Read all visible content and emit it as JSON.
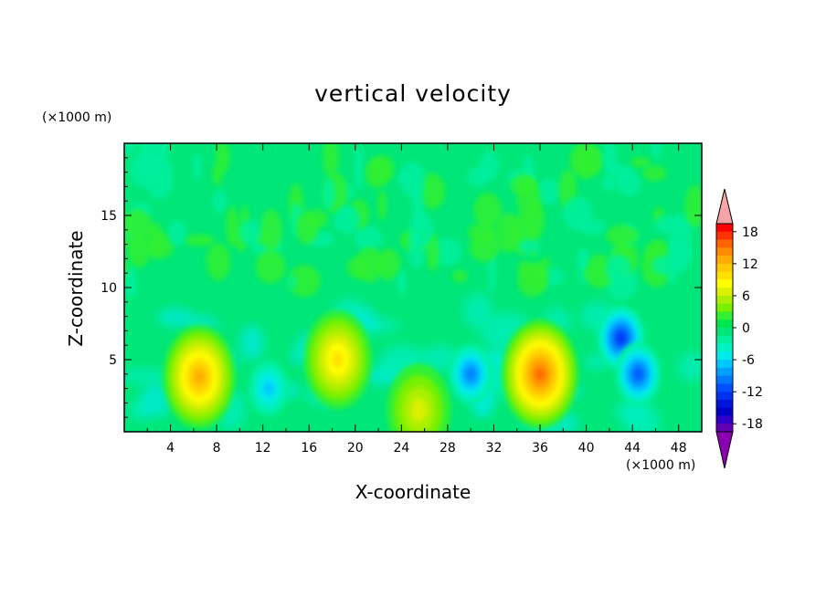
{
  "chart_data": {
    "type": "heatmap",
    "title": "vertical velocity",
    "xlabel": "X-coordinate",
    "ylabel": "Z-coordinate",
    "x_unit": "(×1000 m)",
    "y_unit": "(×1000 m)",
    "xlim": [
      0,
      50
    ],
    "ylim": [
      0,
      20
    ],
    "x_ticks": [
      4,
      8,
      12,
      16,
      20,
      24,
      28,
      32,
      36,
      40,
      44,
      48
    ],
    "y_ticks": [
      5,
      10,
      15
    ],
    "colorbar": {
      "levels": [
        -21,
        -19.5,
        -18,
        -16.5,
        -15,
        -13.5,
        -12,
        -10.5,
        -9,
        -7.5,
        -6,
        -4.5,
        -3,
        -1.5,
        0,
        1.5,
        3,
        4.5,
        6,
        7.5,
        9,
        10.5,
        12,
        13.5,
        15,
        16.5,
        18,
        19.5,
        21
      ],
      "tick_labels": [
        "18",
        "12",
        "6",
        "0",
        "-6",
        "-12",
        "-18"
      ],
      "tick_values": [
        18,
        12,
        6,
        0,
        -6,
        -12,
        -18
      ],
      "colors": [
        "#8c00b4",
        "#6400b4",
        "#3200c8",
        "#0000c8",
        "#0014dc",
        "#0032f0",
        "#0050ff",
        "#0078ff",
        "#00a0ff",
        "#00c8ff",
        "#00ebeb",
        "#00f0c8",
        "#00f0a0",
        "#00e678",
        "#00e650",
        "#32f032",
        "#78f000",
        "#aaf000",
        "#dcf000",
        "#ffff00",
        "#ffe100",
        "#ffc800",
        "#ffaa00",
        "#ff8c00",
        "#ff6400",
        "#ff3200",
        "#ff0000",
        "#f5a5a5"
      ]
    },
    "features": [
      {
        "x": 6.5,
        "z": 3.8,
        "value": 12
      },
      {
        "x": 18.5,
        "z": 5.0,
        "value": 9
      },
      {
        "x": 25.5,
        "z": 1.5,
        "value": 6
      },
      {
        "x": 36.0,
        "z": 4.0,
        "value": 15
      },
      {
        "x": 30.0,
        "z": 4.0,
        "value": -9
      },
      {
        "x": 43.0,
        "z": 6.5,
        "value": -12
      },
      {
        "x": 44.5,
        "z": 4.0,
        "value": -11
      },
      {
        "x": 12.5,
        "z": 3.0,
        "value": -6
      }
    ]
  }
}
